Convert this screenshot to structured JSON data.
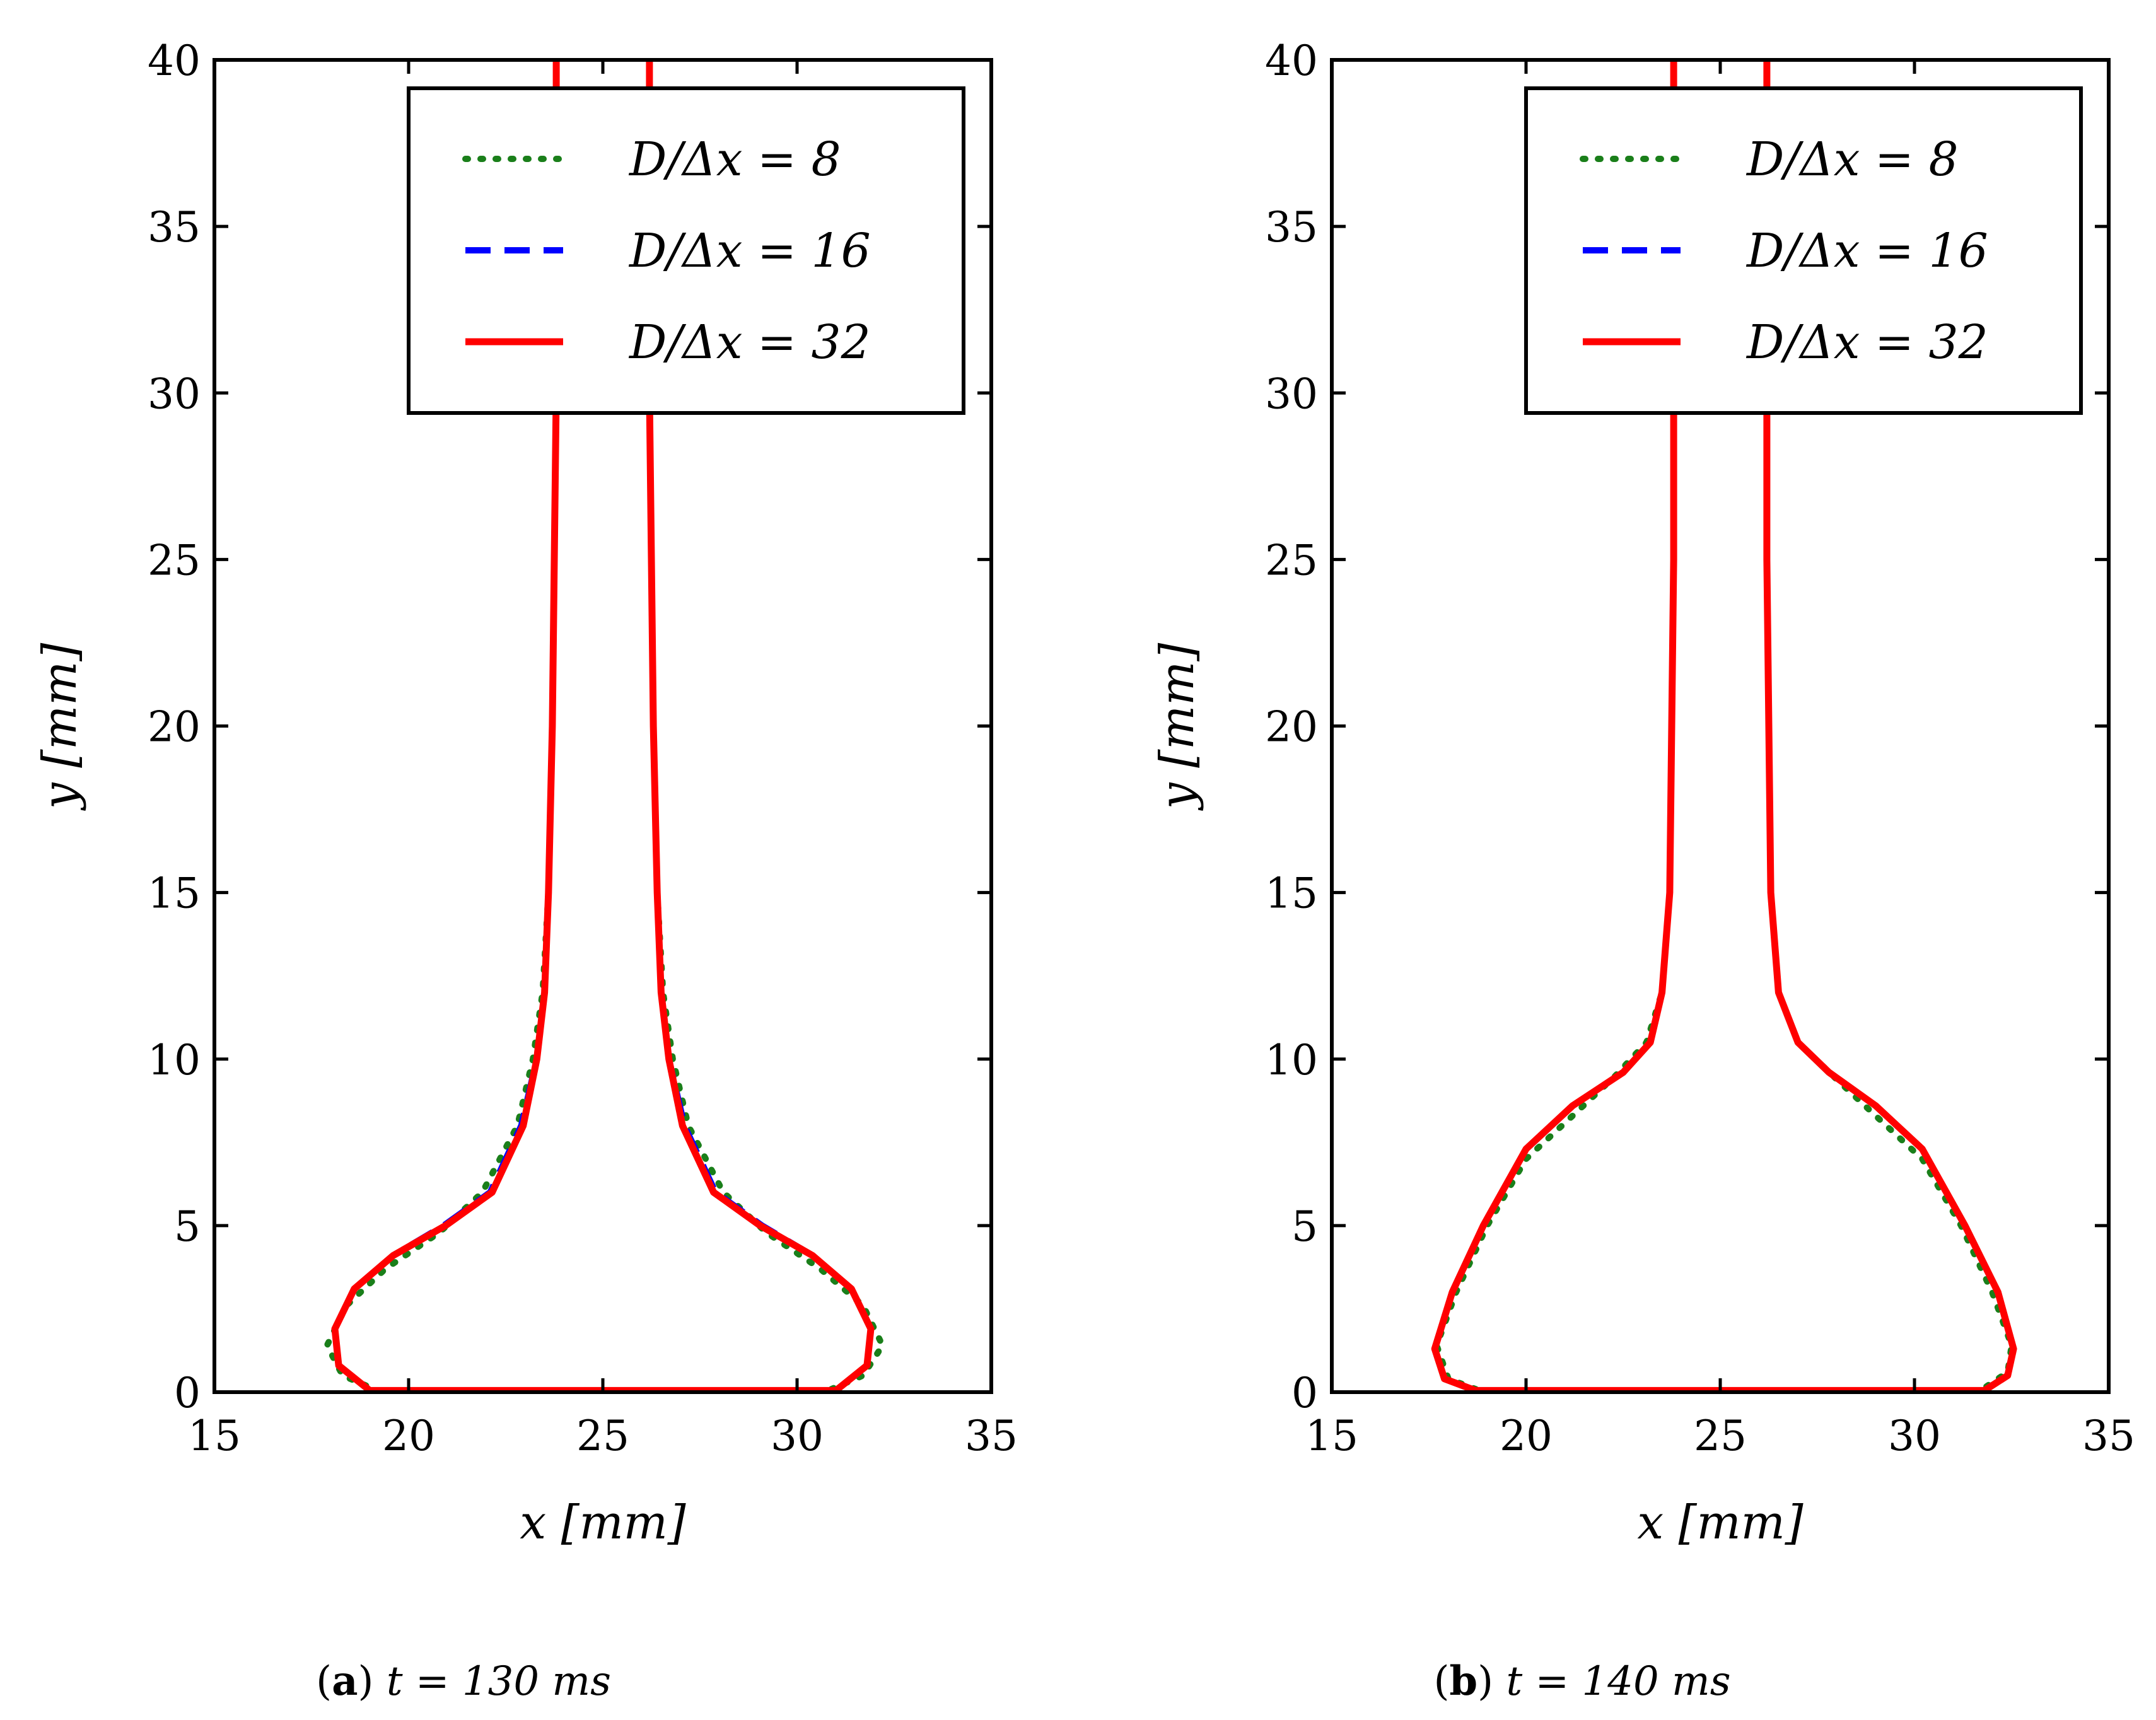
{
  "figure": {
    "captions": [
      {
        "tag": "a",
        "text": "t = 130 ms"
      },
      {
        "tag": "b",
        "text": "t = 140 ms"
      }
    ]
  },
  "chart_data": [
    {
      "type": "line",
      "title": "",
      "caption": "(a) t = 130 ms",
      "xlabel": "x [mm]",
      "ylabel": "y [mm]",
      "xlim": [
        15,
        35
      ],
      "ylim": [
        0,
        40
      ],
      "xticks": [
        15,
        20,
        25,
        30,
        35
      ],
      "yticks": [
        0,
        5,
        10,
        15,
        20,
        25,
        30,
        35,
        40
      ],
      "legend_position": "top-right",
      "series": [
        {
          "name": "D/Δx = 8",
          "style": "dotted",
          "color": "#1a7f1a",
          "points": [
            [
              23.8,
              40
            ],
            [
              23.8,
              30
            ],
            [
              23.75,
              25
            ],
            [
              23.7,
              20
            ],
            [
              23.6,
              15
            ],
            [
              23.45,
              12
            ],
            [
              23.2,
              10
            ],
            [
              22.8,
              8
            ],
            [
              21.9,
              6
            ],
            [
              20.8,
              4.8
            ],
            [
              19.4,
              3.7
            ],
            [
              18.4,
              2.6
            ],
            [
              17.9,
              1.4
            ],
            [
              18.3,
              0.5
            ],
            [
              19.2,
              0.05
            ],
            [
              22,
              0.05
            ],
            [
              25,
              0.05
            ],
            [
              28,
              0.05
            ],
            [
              30.8,
              0.05
            ],
            [
              31.7,
              0.5
            ],
            [
              32.2,
              1.4
            ],
            [
              31.7,
              2.6
            ],
            [
              30.6,
              3.7
            ],
            [
              29.2,
              4.8
            ],
            [
              28.1,
              6
            ],
            [
              27.2,
              8
            ],
            [
              26.8,
              10
            ],
            [
              26.55,
              12
            ],
            [
              26.4,
              15
            ],
            [
              26.3,
              20
            ],
            [
              26.25,
              25
            ],
            [
              26.2,
              30
            ],
            [
              26.2,
              40
            ]
          ]
        },
        {
          "name": "D/Δx = 16",
          "style": "dashed",
          "color": "#0000ff",
          "points": [
            [
              23.8,
              40
            ],
            [
              23.8,
              30
            ],
            [
              23.75,
              25
            ],
            [
              23.7,
              20
            ],
            [
              23.6,
              15
            ],
            [
              23.5,
              12
            ],
            [
              23.3,
              10
            ],
            [
              22.9,
              8
            ],
            [
              22.1,
              6
            ],
            [
              20.9,
              5
            ],
            [
              19.6,
              4.1
            ],
            [
              18.6,
              3.1
            ],
            [
              18.1,
              1.9
            ],
            [
              18.2,
              0.8
            ],
            [
              19,
              0.05
            ],
            [
              22,
              0.05
            ],
            [
              25,
              0.05
            ],
            [
              28,
              0.05
            ],
            [
              31,
              0.05
            ],
            [
              31.8,
              0.8
            ],
            [
              31.9,
              1.9
            ],
            [
              31.4,
              3.1
            ],
            [
              30.4,
              4.1
            ],
            [
              29.1,
              5
            ],
            [
              27.9,
              6
            ],
            [
              27.1,
              8
            ],
            [
              26.7,
              10
            ],
            [
              26.5,
              12
            ],
            [
              26.4,
              15
            ],
            [
              26.3,
              20
            ],
            [
              26.25,
              25
            ],
            [
              26.2,
              30
            ],
            [
              26.2,
              40
            ]
          ]
        },
        {
          "name": "D/Δx = 32",
          "style": "solid",
          "color": "#ff0000",
          "points": [
            [
              23.8,
              40
            ],
            [
              23.8,
              30
            ],
            [
              23.75,
              25
            ],
            [
              23.7,
              20
            ],
            [
              23.6,
              15
            ],
            [
              23.5,
              12
            ],
            [
              23.3,
              10
            ],
            [
              22.95,
              8
            ],
            [
              22.15,
              6
            ],
            [
              20.95,
              5
            ],
            [
              19.6,
              4.1
            ],
            [
              18.6,
              3.1
            ],
            [
              18.1,
              1.9
            ],
            [
              18.2,
              0.8
            ],
            [
              19,
              0.05
            ],
            [
              22,
              0.05
            ],
            [
              25,
              0.05
            ],
            [
              28,
              0.05
            ],
            [
              31,
              0.05
            ],
            [
              31.8,
              0.8
            ],
            [
              31.9,
              1.9
            ],
            [
              31.4,
              3.1
            ],
            [
              30.4,
              4.1
            ],
            [
              29.05,
              5
            ],
            [
              27.85,
              6
            ],
            [
              27.05,
              8
            ],
            [
              26.7,
              10
            ],
            [
              26.5,
              12
            ],
            [
              26.4,
              15
            ],
            [
              26.3,
              20
            ],
            [
              26.25,
              25
            ],
            [
              26.2,
              30
            ],
            [
              26.2,
              40
            ]
          ]
        }
      ]
    },
    {
      "type": "line",
      "title": "",
      "caption": "(b) t = 140 ms",
      "xlabel": "x [mm]",
      "ylabel": "y [mm]",
      "xlim": [
        15,
        35
      ],
      "ylim": [
        0,
        40
      ],
      "xticks": [
        15,
        20,
        25,
        30,
        35
      ],
      "yticks": [
        0,
        5,
        10,
        15,
        20,
        25,
        30,
        35,
        40
      ],
      "legend_position": "top-right",
      "series": [
        {
          "name": "D/Δx = 8",
          "style": "dotted",
          "color": "#1a7f1a",
          "points": [
            [
              23.8,
              40
            ],
            [
              23.8,
              30
            ],
            [
              23.8,
              25
            ],
            [
              23.75,
              20
            ],
            [
              23.7,
              15
            ],
            [
              23.5,
              12
            ],
            [
              23.1,
              10.5
            ],
            [
              22.3,
              9.5
            ],
            [
              21.2,
              8.3
            ],
            [
              20,
              7
            ],
            [
              19,
              5
            ],
            [
              18.2,
              3
            ],
            [
              17.7,
              1.4
            ],
            [
              18,
              0.4
            ],
            [
              18.8,
              0.05
            ],
            [
              22,
              0.05
            ],
            [
              25,
              0.05
            ],
            [
              28,
              0.05
            ],
            [
              31.7,
              0.05
            ],
            [
              32.4,
              0.6
            ],
            [
              32.5,
              1.4
            ],
            [
              32,
              3
            ],
            [
              31.2,
              5
            ],
            [
              30.2,
              7
            ],
            [
              29,
              8.3
            ],
            [
              27.9,
              9.5
            ],
            [
              27,
              10.5
            ],
            [
              26.5,
              12
            ],
            [
              26.3,
              15
            ],
            [
              26.25,
              20
            ],
            [
              26.2,
              25
            ],
            [
              26.2,
              30
            ],
            [
              26.2,
              40
            ]
          ]
        },
        {
          "name": "D/Δx = 16",
          "style": "dashed",
          "color": "#0000ff",
          "points": [
            [
              23.8,
              40
            ],
            [
              23.8,
              30
            ],
            [
              23.8,
              25
            ],
            [
              23.75,
              20
            ],
            [
              23.7,
              15
            ],
            [
              23.5,
              12
            ],
            [
              23.2,
              10.5
            ],
            [
              22.5,
              9.6
            ],
            [
              21.2,
              8.6
            ],
            [
              20,
              7.3
            ],
            [
              18.9,
              5
            ],
            [
              18.1,
              3
            ],
            [
              17.65,
              1.3
            ],
            [
              17.9,
              0.4
            ],
            [
              18.7,
              0.05
            ],
            [
              22,
              0.05
            ],
            [
              25,
              0.05
            ],
            [
              28,
              0.05
            ],
            [
              31.8,
              0.05
            ],
            [
              32.4,
              0.5
            ],
            [
              32.55,
              1.3
            ],
            [
              32.15,
              3
            ],
            [
              31.3,
              5
            ],
            [
              30.2,
              7.3
            ],
            [
              29,
              8.6
            ],
            [
              27.8,
              9.6
            ],
            [
              27,
              10.5
            ],
            [
              26.5,
              12
            ],
            [
              26.3,
              15
            ],
            [
              26.25,
              20
            ],
            [
              26.2,
              25
            ],
            [
              26.2,
              30
            ],
            [
              26.2,
              40
            ]
          ]
        },
        {
          "name": "D/Δx = 32",
          "style": "solid",
          "color": "#ff0000",
          "points": [
            [
              23.8,
              40
            ],
            [
              23.8,
              30
            ],
            [
              23.8,
              25
            ],
            [
              23.75,
              20
            ],
            [
              23.7,
              15
            ],
            [
              23.5,
              12
            ],
            [
              23.2,
              10.5
            ],
            [
              22.5,
              9.6
            ],
            [
              21.2,
              8.6
            ],
            [
              20,
              7.3
            ],
            [
              18.9,
              5
            ],
            [
              18.1,
              3
            ],
            [
              17.65,
              1.3
            ],
            [
              17.9,
              0.4
            ],
            [
              18.7,
              0.05
            ],
            [
              22,
              0.05
            ],
            [
              25,
              0.05
            ],
            [
              28,
              0.05
            ],
            [
              31.8,
              0.05
            ],
            [
              32.4,
              0.5
            ],
            [
              32.55,
              1.3
            ],
            [
              32.15,
              3
            ],
            [
              31.3,
              5
            ],
            [
              30.2,
              7.3
            ],
            [
              29,
              8.6
            ],
            [
              27.8,
              9.6
            ],
            [
              27,
              10.5
            ],
            [
              26.5,
              12
            ],
            [
              26.3,
              15
            ],
            [
              26.25,
              20
            ],
            [
              26.2,
              25
            ],
            [
              26.2,
              30
            ],
            [
              26.2,
              40
            ]
          ]
        }
      ]
    }
  ]
}
